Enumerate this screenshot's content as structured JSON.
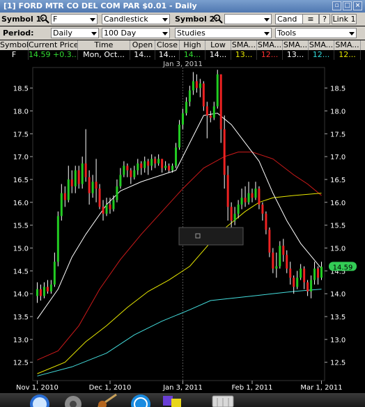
{
  "window": {
    "title": "[1] FORD MTR CO DEL COM PAR $0.01 - Daily",
    "help_btn": "?",
    "link_btn": "Link 1"
  },
  "toolbar": {
    "symbol1_label": "Symbol 1:",
    "symbol1_value": "F",
    "chart_type": "Candlestick",
    "symbol2_label": "Symbol 2:",
    "symbol2_value": "",
    "chart_type2": "Cand",
    "period_label": "Period:",
    "period_value": "Daily",
    "range_value": "100 Day",
    "studies_value": "Studies",
    "tools_value": "Tools"
  },
  "quote": {
    "headers": [
      "Symbol",
      "Current Price",
      "Time",
      "Open",
      "Close",
      "High",
      "Low",
      "SMA...",
      "SMA...",
      "SMA...",
      "SMA...",
      "SMA..."
    ],
    "values": [
      "F",
      "14.59",
      "+0.3...",
      "Mon, Oct...",
      "14...",
      "14...",
      "14...",
      "14...",
      "13...",
      "12...",
      "13...",
      "12...",
      "12..."
    ],
    "colors": {
      "price": "#33dd33",
      "sma1": "#e8e800",
      "sma2": "#ff3030",
      "sma3": "#ffffff",
      "sma4": "#33dddd",
      "sma5": "#e8e800"
    }
  },
  "chart_data": {
    "type": "candlestick",
    "y_ticks": [
      "18.5",
      "18.0",
      "17.5",
      "17.0",
      "16.5",
      "16.0",
      "15.5",
      "15.0",
      "14.5",
      "14.0",
      "13.5",
      "13.0",
      "12.5"
    ],
    "ylim": [
      12.1,
      18.95
    ],
    "x_ticks": [
      "Nov 1, 2010",
      "Dec 1, 2010",
      "Jan 3, 2011",
      "Feb 1, 2011",
      "Mar 1, 2011"
    ],
    "top_label": "Jan 3, 2011",
    "current_price_tag": "14.59",
    "colors": {
      "up": "#22cc22",
      "down": "#ee2222",
      "sma_white": "#ffffff",
      "sma_yellow": "#e8e800",
      "sma_red": "#cc1a1a",
      "sma_cyan": "#44dddd",
      "price_tag": "#33cc55",
      "grid": "#444444"
    },
    "candles": [
      [
        13.95,
        14.1,
        14.25,
        13.8
      ],
      [
        14.1,
        13.95,
        14.2,
        13.85
      ],
      [
        13.95,
        14.15,
        14.25,
        13.9
      ],
      [
        14.15,
        14.05,
        14.3,
        14.0
      ],
      [
        14.05,
        14.2,
        14.3,
        14.0
      ],
      [
        14.2,
        14.7,
        14.9,
        14.15
      ],
      [
        14.7,
        15.7,
        15.8,
        14.6
      ],
      [
        15.7,
        16.2,
        16.4,
        15.6
      ],
      [
        16.2,
        16.05,
        16.35,
        15.9
      ],
      [
        16.05,
        16.5,
        16.8,
        16.0
      ],
      [
        16.5,
        16.35,
        16.7,
        16.2
      ],
      [
        16.35,
        16.7,
        16.8,
        16.2
      ],
      [
        16.7,
        16.4,
        16.8,
        16.3
      ],
      [
        16.4,
        16.85,
        17.0,
        16.3
      ],
      [
        16.85,
        16.55,
        17.6,
        16.45
      ],
      [
        16.55,
        16.2,
        16.7,
        15.95
      ],
      [
        16.2,
        16.45,
        16.6,
        16.1
      ],
      [
        16.45,
        16.3,
        16.95,
        16.0
      ],
      [
        16.3,
        15.9,
        16.4,
        15.85
      ],
      [
        15.9,
        15.75,
        16.05,
        15.6
      ],
      [
        15.75,
        15.95,
        16.1,
        15.7
      ],
      [
        15.95,
        15.85,
        16.1,
        15.75
      ],
      [
        15.85,
        16.05,
        16.15,
        15.8
      ],
      [
        16.05,
        16.35,
        16.5,
        16.0
      ],
      [
        16.35,
        16.6,
        16.75,
        16.3
      ],
      [
        16.6,
        16.8,
        16.9,
        16.55
      ],
      [
        16.8,
        16.7,
        16.85,
        16.55
      ],
      [
        16.7,
        16.55,
        16.75,
        16.4
      ],
      [
        16.55,
        16.7,
        16.8,
        16.5
      ],
      [
        16.7,
        16.85,
        16.95,
        16.6
      ],
      [
        16.85,
        16.75,
        16.9,
        16.6
      ],
      [
        16.75,
        16.9,
        17.0,
        16.65
      ],
      [
        16.9,
        16.8,
        16.95,
        16.6
      ],
      [
        16.8,
        16.95,
        17.05,
        16.7
      ],
      [
        16.95,
        16.85,
        17.0,
        16.75
      ],
      [
        16.85,
        16.95,
        17.05,
        16.8
      ],
      [
        16.95,
        16.75,
        16.95,
        16.65
      ],
      [
        16.75,
        16.8,
        16.9,
        16.7
      ],
      [
        16.8,
        16.7,
        16.85,
        16.65
      ],
      [
        16.7,
        16.8,
        16.85,
        16.65
      ],
      [
        16.8,
        17.2,
        17.3,
        16.75
      ],
      [
        17.2,
        17.7,
        17.8,
        17.15
      ],
      [
        17.7,
        17.95,
        18.05,
        17.6
      ],
      [
        17.95,
        18.2,
        18.3,
        17.9
      ],
      [
        18.2,
        18.45,
        18.55,
        18.1
      ],
      [
        18.45,
        18.65,
        18.85,
        18.35
      ],
      [
        18.65,
        18.5,
        18.8,
        18.4
      ],
      [
        18.5,
        18.6,
        18.7,
        18.3
      ],
      [
        18.6,
        18.1,
        18.65,
        18.0
      ],
      [
        18.1,
        17.9,
        18.2,
        17.4
      ],
      [
        17.9,
        17.85,
        18.0,
        17.75
      ],
      [
        17.85,
        18.1,
        18.2,
        17.8
      ],
      [
        18.1,
        18.8,
        18.9,
        18.05
      ],
      [
        18.8,
        17.6,
        18.8,
        17.3
      ],
      [
        17.6,
        16.6,
        17.9,
        16.3
      ],
      [
        16.6,
        15.9,
        16.8,
        15.6
      ],
      [
        15.9,
        15.6,
        16.0,
        15.3
      ],
      [
        15.6,
        15.75,
        15.9,
        15.5
      ],
      [
        15.75,
        15.95,
        16.05,
        15.65
      ],
      [
        15.95,
        16.1,
        16.3,
        15.85
      ],
      [
        16.1,
        16.0,
        16.35,
        15.9
      ],
      [
        16.0,
        16.2,
        16.45,
        15.95
      ],
      [
        16.2,
        16.1,
        16.3,
        16.0
      ],
      [
        16.1,
        16.3,
        16.45,
        16.05
      ],
      [
        16.3,
        15.95,
        16.35,
        15.85
      ],
      [
        15.95,
        15.75,
        16.0,
        15.6
      ],
      [
        15.75,
        15.4,
        15.8,
        15.3
      ],
      [
        15.4,
        14.9,
        15.45,
        14.8
      ],
      [
        14.9,
        14.55,
        15.0,
        14.45
      ],
      [
        14.55,
        14.6,
        14.9,
        14.35
      ],
      [
        14.6,
        15.05,
        15.15,
        14.55
      ],
      [
        15.05,
        14.85,
        15.2,
        14.7
      ],
      [
        14.85,
        14.55,
        14.95,
        14.45
      ],
      [
        14.55,
        14.35,
        14.7,
        14.2
      ],
      [
        14.35,
        14.15,
        14.4,
        14.0
      ],
      [
        14.15,
        14.35,
        14.5,
        14.1
      ],
      [
        14.35,
        14.55,
        14.65,
        14.3
      ],
      [
        14.55,
        14.25,
        14.6,
        14.1
      ],
      [
        14.25,
        14.05,
        14.3,
        13.95
      ],
      [
        14.05,
        14.3,
        14.4,
        13.9
      ],
      [
        14.3,
        14.55,
        14.7,
        14.2
      ],
      [
        14.55,
        14.35,
        14.6,
        14.2
      ],
      [
        14.35,
        14.59,
        14.7,
        14.3
      ]
    ],
    "sma_white": [
      [
        0,
        13.45
      ],
      [
        6,
        14.1
      ],
      [
        10,
        14.8
      ],
      [
        14,
        15.3
      ],
      [
        20,
        15.95
      ],
      [
        24,
        16.25
      ],
      [
        30,
        16.45
      ],
      [
        36,
        16.6
      ],
      [
        40,
        16.7
      ],
      [
        44,
        17.3
      ],
      [
        48,
        17.9
      ],
      [
        52,
        17.95
      ],
      [
        56,
        17.7
      ],
      [
        60,
        17.3
      ],
      [
        64,
        16.9
      ],
      [
        68,
        16.2
      ],
      [
        72,
        15.6
      ],
      [
        76,
        15.1
      ],
      [
        82,
        14.55
      ]
    ],
    "sma_yellow": [
      [
        0,
        12.25
      ],
      [
        8,
        12.5
      ],
      [
        14,
        12.95
      ],
      [
        20,
        13.3
      ],
      [
        26,
        13.7
      ],
      [
        32,
        14.05
      ],
      [
        38,
        14.3
      ],
      [
        44,
        14.6
      ],
      [
        48,
        14.95
      ],
      [
        52,
        15.3
      ],
      [
        56,
        15.55
      ],
      [
        60,
        15.8
      ],
      [
        64,
        16.0
      ],
      [
        68,
        16.1
      ],
      [
        74,
        16.15
      ],
      [
        82,
        16.2
      ]
    ],
    "sma_red": [
      [
        0,
        12.55
      ],
      [
        6,
        12.75
      ],
      [
        12,
        13.3
      ],
      [
        18,
        14.1
      ],
      [
        24,
        14.75
      ],
      [
        30,
        15.3
      ],
      [
        36,
        15.8
      ],
      [
        42,
        16.3
      ],
      [
        48,
        16.75
      ],
      [
        54,
        17.0
      ],
      [
        58,
        17.1
      ],
      [
        62,
        17.1
      ],
      [
        68,
        16.95
      ],
      [
        74,
        16.6
      ],
      [
        78,
        16.4
      ],
      [
        82,
        16.15
      ]
    ],
    "sma_cyan": [
      [
        0,
        12.2
      ],
      [
        10,
        12.4
      ],
      [
        20,
        12.7
      ],
      [
        28,
        13.1
      ],
      [
        36,
        13.4
      ],
      [
        44,
        13.65
      ],
      [
        50,
        13.85
      ],
      [
        56,
        13.9
      ],
      [
        62,
        13.95
      ],
      [
        68,
        14.0
      ],
      [
        74,
        14.05
      ],
      [
        82,
        14.1
      ]
    ]
  },
  "dock": {
    "icons": [
      "safari-icon",
      "system-preferences-icon",
      "guitar-icon",
      "app-store-icon",
      "puzzle-icon",
      "trash-icon"
    ]
  }
}
